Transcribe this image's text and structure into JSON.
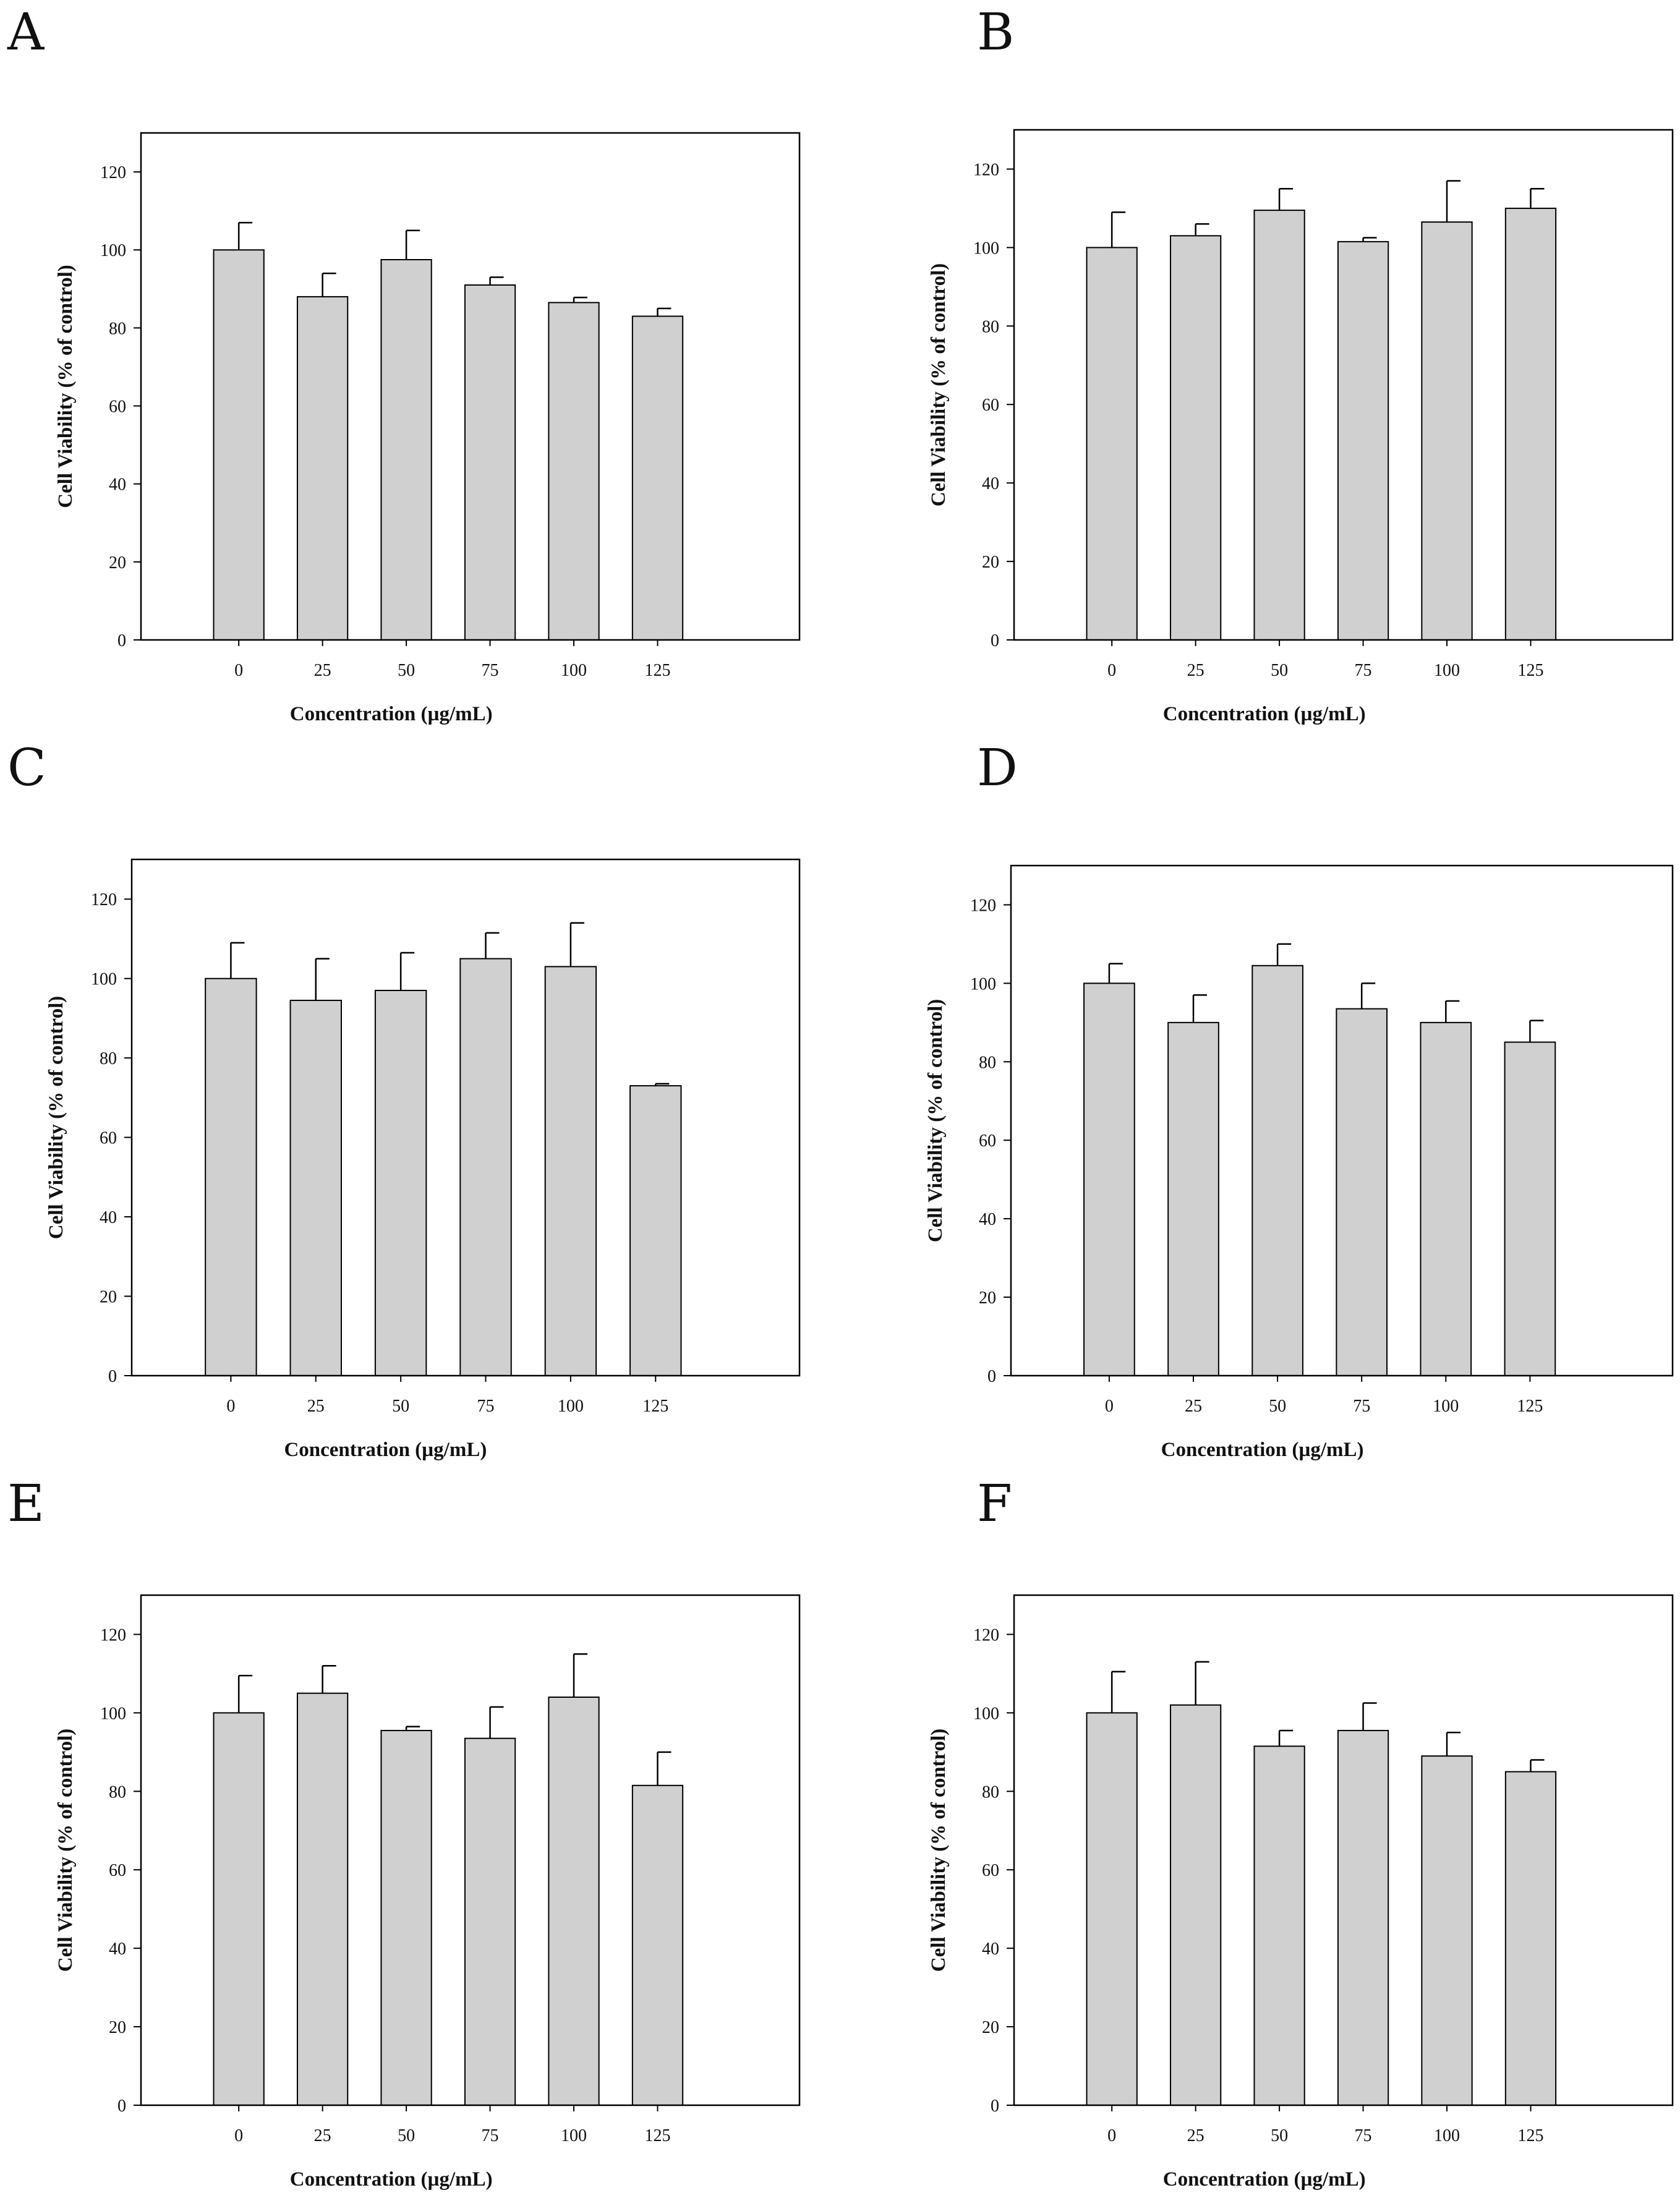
{
  "colors": {
    "bar_fill": "#d0d0d0",
    "bar_stroke": "#000000",
    "frame": "#000000",
    "background": "#ffffff"
  },
  "chart_data": [
    {
      "panel": "A",
      "type": "bar",
      "title": "",
      "categories": [
        "0",
        "25",
        "50",
        "75",
        "100",
        "125"
      ],
      "values": [
        100,
        88,
        97.5,
        91,
        86.5,
        83
      ],
      "errors": [
        7,
        6,
        7.5,
        2,
        1.3,
        2
      ],
      "xlabel": "Concentration (µg/mL)",
      "ylabel": "Cell Viability (% of control)",
      "ylim": [
        0,
        130
      ],
      "yticks": [
        "0",
        "20",
        "40",
        "60",
        "80",
        "100",
        "120"
      ],
      "grid": false
    },
    {
      "panel": "B",
      "type": "bar",
      "title": "",
      "categories": [
        "0",
        "25",
        "50",
        "75",
        "100",
        "125"
      ],
      "values": [
        100,
        103,
        109.5,
        101.5,
        106.5,
        110
      ],
      "errors": [
        9,
        3,
        5.5,
        1,
        10.5,
        5
      ],
      "xlabel": "Concentration (µg/mL)",
      "ylabel": "Cell Viability (% of control)",
      "ylim": [
        0,
        130
      ],
      "yticks": [
        "0",
        "20",
        "40",
        "60",
        "80",
        "100",
        "120"
      ],
      "grid": false
    },
    {
      "panel": "C",
      "type": "bar",
      "title": "",
      "categories": [
        "0",
        "25",
        "50",
        "75",
        "100",
        "125"
      ],
      "values": [
        100,
        94.5,
        97,
        105,
        103,
        73
      ],
      "errors": [
        9,
        10.5,
        9.5,
        6.5,
        11,
        0.5
      ],
      "xlabel": "Concentration (µg/mL)",
      "ylabel": "Cell Viability (% of control)",
      "ylim": [
        0,
        130
      ],
      "yticks": [
        "0",
        "20",
        "40",
        "60",
        "80",
        "100",
        "120"
      ],
      "grid": false
    },
    {
      "panel": "D",
      "type": "bar",
      "title": "",
      "categories": [
        "0",
        "25",
        "50",
        "75",
        "100",
        "125"
      ],
      "values": [
        100,
        90,
        104.5,
        93.5,
        90,
        85
      ],
      "errors": [
        5,
        7,
        5.5,
        6.5,
        5.5,
        5.5
      ],
      "xlabel": "Concentration (µg/mL)",
      "ylabel": "Cell Viability (% of control)",
      "ylim": [
        0,
        130
      ],
      "yticks": [
        "0",
        "20",
        "40",
        "60",
        "80",
        "100",
        "120"
      ],
      "grid": false
    },
    {
      "panel": "E",
      "type": "bar",
      "title": "",
      "categories": [
        "0",
        "25",
        "50",
        "75",
        "100",
        "125"
      ],
      "values": [
        100,
        105,
        95.5,
        93.5,
        104,
        81.5
      ],
      "errors": [
        9.5,
        7,
        1,
        8,
        11,
        8.5
      ],
      "xlabel": "Concentration (µg/mL)",
      "ylabel": "Cell Viability (% of control)",
      "ylim": [
        0,
        130
      ],
      "yticks": [
        "0",
        "20",
        "40",
        "60",
        "80",
        "100",
        "120"
      ],
      "grid": false
    },
    {
      "panel": "F",
      "type": "bar",
      "title": "",
      "categories": [
        "0",
        "25",
        "50",
        "75",
        "100",
        "125"
      ],
      "values": [
        100,
        102,
        91.5,
        95.5,
        89,
        85
      ],
      "errors": [
        10.5,
        11,
        4,
        7,
        6,
        3
      ],
      "xlabel": "Concentration (µg/mL)",
      "ylabel": "Cell Viability (% of control)",
      "ylim": [
        0,
        130
      ],
      "yticks": [
        "0",
        "20",
        "40",
        "60",
        "80",
        "100",
        "120"
      ],
      "grid": false
    }
  ]
}
